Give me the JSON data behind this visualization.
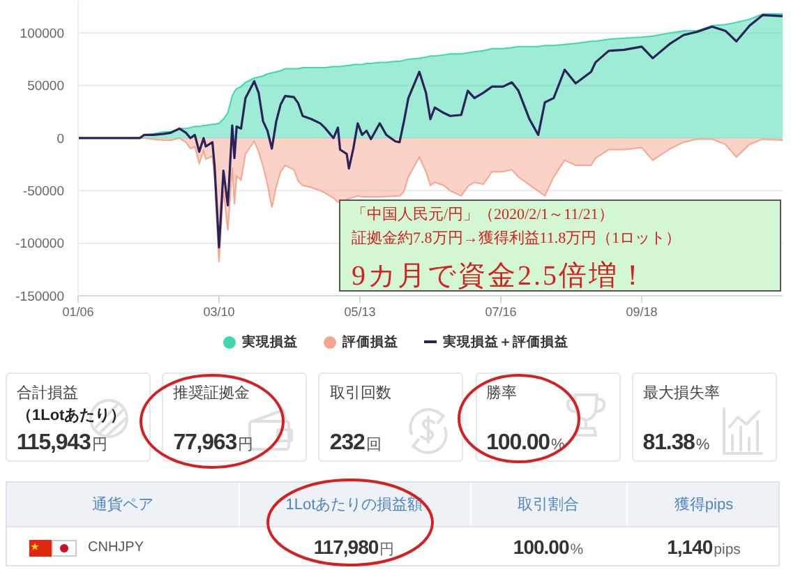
{
  "chart_data": [
    {
      "type": "area",
      "x": [
        "--01-06",
        "--02-03",
        "--02-05",
        "--02-09",
        "--02-14",
        "--02-17",
        "--02-21",
        "--02-24",
        "--02-26",
        "--02-28",
        "--03-01",
        "--03-03",
        "--03-04",
        "--03-07",
        "--03-08",
        "--03-10",
        "--03-12",
        "--03-14",
        "--03-16",
        "--03-17",
        "--03-18",
        "--03-20",
        "--03-22",
        "--03-26",
        "--03-28",
        "--03-30",
        "--04-01",
        "--04-03",
        "--04-05",
        "--04-07",
        "--04-09",
        "--04-13",
        "--04-15",
        "--04-17",
        "--04-21",
        "--04-25",
        "--04-27",
        "--05-01",
        "--05-03",
        "--05-04",
        "--05-07",
        "--05-08",
        "--05-10",
        "--05-12",
        "--05-14",
        "--05-16",
        "--05-18",
        "--05-22",
        "--05-25",
        "--05-29",
        "--05-31",
        "--06-02",
        "--06-04",
        "--06-09",
        "--06-12",
        "--06-14",
        "--06-16",
        "--06-20",
        "--06-23",
        "--06-28",
        "--07-01",
        "--07-04",
        "--07-08",
        "--07-12",
        "--07-17",
        "--07-21",
        "--07-24",
        "--07-29",
        "--08-02",
        "--08-05",
        "--08-09",
        "--08-14",
        "--08-19",
        "--08-26",
        "--08-28",
        "--09-03",
        "--09-10",
        "--09-18",
        "--09-23",
        "--10-01",
        "--10-07",
        "--10-13",
        "--10-20",
        "--10-26",
        "--10-31",
        "--11-06",
        "--11-12",
        "--11-21"
      ],
      "xlim": [
        "--01-06",
        "--11-21"
      ],
      "xticks": [
        {
          "value": "--01-06",
          "label": "01/06"
        },
        {
          "value": "--03-10",
          "label": "03/10"
        },
        {
          "value": "--05-13",
          "label": "05/13"
        },
        {
          "value": "--07-16",
          "label": "07/16"
        },
        {
          "value": "--09-18",
          "label": "09/18"
        }
      ],
      "ylim": [
        -150000,
        130000
      ],
      "yticks": [
        -150000,
        -100000,
        -50000,
        0,
        50000,
        100000
      ],
      "grid": "y",
      "legend": "bottom",
      "annotations": [
        "「中国人民元/円」（2020/2/1～11/21）",
        "証拠金約7.8万円→獲得利益11.8万円（1ロット）",
        "9カ月で資金2.5倍増！"
      ],
      "series": [
        {
          "name": "実現損益",
          "color": "#3dd8ae",
          "values": [
            0,
            0,
            3000,
            4000,
            6000,
            6000,
            9000,
            9000,
            10000,
            11000,
            11000,
            12000,
            12000,
            13000,
            13000,
            14000,
            18000,
            24000,
            40000,
            44000,
            47000,
            49000,
            53000,
            57000,
            58000,
            59000,
            61000,
            62000,
            63000,
            64000,
            66000,
            66000,
            66000,
            67000,
            67000,
            67000,
            67000,
            68000,
            68000,
            68000,
            69000,
            69000,
            70000,
            70000,
            70000,
            71000,
            71000,
            72000,
            72000,
            73000,
            73000,
            74000,
            75000,
            76000,
            77000,
            78000,
            78000,
            79000,
            80000,
            80000,
            81000,
            82000,
            83000,
            85000,
            85000,
            86000,
            87000,
            87000,
            87000,
            88000,
            88000,
            89000,
            90000,
            92000,
            92000,
            94000,
            95000,
            96000,
            97000,
            100000,
            102000,
            102000,
            107000,
            108000,
            110000,
            113000,
            118000,
            118000
          ]
        },
        {
          "name": "評価損益",
          "color": "#f7a58f",
          "values": [
            0,
            0,
            0,
            -1000,
            -2000,
            -2000,
            0,
            -4000,
            -10000,
            -8000,
            -24000,
            -12000,
            -20000,
            -17000,
            -40000,
            -118000,
            -49000,
            -88000,
            -28000,
            -63000,
            -36000,
            -40000,
            -15000,
            -3000,
            -13000,
            -27000,
            -44000,
            -66000,
            -46000,
            -32000,
            -26000,
            -30000,
            -41000,
            -45000,
            -47000,
            -50000,
            -52000,
            -57000,
            -61000,
            null,
            null,
            null,
            null,
            -55000,
            -56000,
            null,
            null,
            -56000,
            null,
            null,
            -55000,
            -51000,
            -37000,
            -18000,
            -32000,
            -45000,
            -42000,
            -45000,
            -50000,
            -55000,
            -46000,
            -42000,
            -44000,
            -32000,
            -32000,
            -30000,
            -37000,
            null,
            null,
            -55000,
            -37000,
            -21000,
            -26000,
            -26000,
            -19000,
            -11000,
            -11000,
            -9000,
            -21000,
            -10000,
            -4000,
            -1000,
            -1000,
            -6000,
            -18000,
            -6000,
            -1000,
            -2000
          ]
        },
        {
          "name": "実現損益＋評価損益",
          "type": "line",
          "color": "#2a2258",
          "values": [
            0,
            0,
            3000,
            3000,
            4000,
            5000,
            9000,
            5000,
            0,
            3000,
            -13000,
            0,
            -8000,
            -4000,
            -27000,
            -104000,
            -31000,
            -64000,
            12000,
            -19000,
            11000,
            9000,
            38000,
            54000,
            43000,
            16000,
            7000,
            -10000,
            16000,
            32000,
            40000,
            39000,
            33000,
            21000,
            18000,
            14000,
            10000,
            0,
            10000,
            -11000,
            -15000,
            -29000,
            -10000,
            14000,
            3000,
            7000,
            -1000,
            14000,
            3000,
            -3000,
            -4000,
            16000,
            38000,
            63000,
            43000,
            18000,
            29000,
            24000,
            21000,
            22000,
            45000,
            38000,
            43000,
            49000,
            49000,
            53000,
            45000,
            18000,
            3000,
            34000,
            38000,
            65000,
            52000,
            63000,
            72000,
            83000,
            84000,
            87000,
            76000,
            90000,
            98000,
            101000,
            106000,
            102000,
            92000,
            107000,
            117000,
            116000
          ]
        }
      ]
    },
    {
      "type": "other",
      "annotations": [
        "合計損益",
        "（1Lotあたり）",
        "115,943",
        "円",
        "推奨証拠金",
        "77,963",
        "円",
        "取引回数",
        "232",
        "回",
        "勝率",
        "100.00",
        "%",
        "最大損失率",
        "81.38",
        "%"
      ]
    },
    {
      "type": "other",
      "annotations": [
        "通貨ペア",
        "1Lotあたりの損益額",
        "取引割合",
        "獲得pips",
        "CNHJPY",
        "117,980",
        "円",
        "100.00",
        "%",
        "1,140",
        "pips"
      ]
    }
  ]
}
